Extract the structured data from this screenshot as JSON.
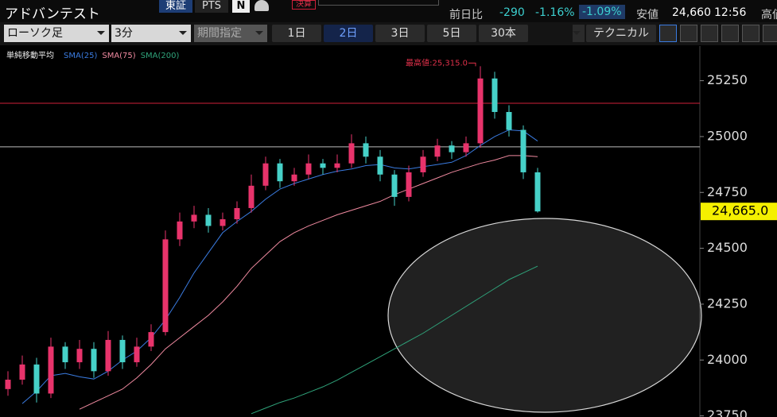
{
  "header": {
    "title": "アドバンテスト",
    "market_buttons": [
      "東証",
      "PTS"
    ],
    "earnings": "決算",
    "change_label": "前日比",
    "change": "-290",
    "change_pct": "-1.16%",
    "index_change_pct": "-1.09%",
    "low_label": "安値",
    "low": "24,660",
    "time": "12:56",
    "high_label": "高値"
  },
  "toolbar": {
    "chart_type": "ローソク足",
    "interval": "3分",
    "period": "期間指定",
    "ranges": [
      "1日",
      "2日",
      "3日",
      "5日",
      "30本"
    ],
    "selected_range": 1,
    "technical": "テクニカル"
  },
  "chart_data": {
    "type": "candlestick",
    "legend_title": "単純移動平均",
    "ylim": [
      23745,
      25405
    ],
    "yticks": [
      23750,
      24000,
      24250,
      24500,
      24750,
      25000,
      25250
    ],
    "up_color": "#e8336b",
    "down_color": "#46d1c8",
    "candles": {
      "open": [
        23870,
        23912,
        23980,
        23850,
        24060,
        23990,
        24050,
        23950,
        24090,
        23990,
        24060,
        24125,
        24540,
        24620,
        24650,
        24600,
        24630,
        24680,
        24780,
        24880,
        24800,
        24830,
        24880,
        24860,
        24880,
        24970,
        24910,
        24830,
        24730,
        24840,
        24910,
        24960,
        24930,
        24970,
        25260,
        25110,
        25030,
        24840
      ],
      "high": [
        23950,
        24020,
        24010,
        24100,
        24080,
        24090,
        24080,
        24130,
        24110,
        24100,
        24160,
        24580,
        24660,
        24690,
        24680,
        24660,
        24710,
        24830,
        24910,
        24900,
        24860,
        24920,
        24900,
        24920,
        25010,
        25000,
        24940,
        24850,
        24870,
        24940,
        24990,
        24980,
        25000,
        25315,
        25290,
        25140,
        25050,
        24860
      ],
      "low": [
        23840,
        23890,
        23810,
        23830,
        23960,
        23960,
        23920,
        23930,
        23960,
        23970,
        24040,
        24110,
        24510,
        24590,
        24570,
        24580,
        24610,
        24660,
        24760,
        24770,
        24780,
        24810,
        24830,
        24840,
        24860,
        24880,
        24800,
        24690,
        24710,
        24820,
        24890,
        24900,
        24910,
        24950,
        25080,
        25000,
        24810,
        24660
      ],
      "close": [
        23912,
        23980,
        23850,
        24060,
        23990,
        24050,
        23950,
        24090,
        23990,
        24060,
        24125,
        24540,
        24620,
        24650,
        24600,
        24630,
        24680,
        24780,
        24880,
        24800,
        24830,
        24880,
        24860,
        24880,
        24970,
        24910,
        24830,
        24730,
        24840,
        24910,
        24960,
        24930,
        24970,
        25260,
        25110,
        25030,
        24840,
        24665
      ]
    },
    "overlays": [
      {
        "name": "SMA(25)",
        "color": "#3a7be0",
        "values": [
          null,
          23805,
          23860,
          23930,
          23940,
          23925,
          23915,
          23950,
          24000,
          24040,
          24100,
          24180,
          24280,
          24390,
          24480,
          24570,
          24620,
          24665,
          24720,
          24765,
          24790,
          24810,
          24830,
          24845,
          24855,
          24870,
          24875,
          24860,
          24855,
          24865,
          24875,
          24885,
          24915,
          24960,
          25000,
          25030,
          25025,
          24980
        ]
      },
      {
        "name": "SMA(75)",
        "color": "#f08aa0",
        "values": [
          null,
          null,
          null,
          null,
          null,
          23780,
          23810,
          23840,
          23870,
          23920,
          23980,
          24050,
          24100,
          24150,
          24200,
          24260,
          24330,
          24410,
          24470,
          24530,
          24570,
          24600,
          24625,
          24650,
          24670,
          24690,
          24710,
          24740,
          24765,
          24790,
          24815,
          24840,
          24860,
          24880,
          24895,
          24915,
          24915,
          24910
        ]
      },
      {
        "name": "SMA(200)",
        "color": "#2fa37a",
        "values": [
          null,
          null,
          null,
          null,
          null,
          null,
          null,
          null,
          null,
          null,
          null,
          null,
          null,
          null,
          null,
          null,
          null,
          23760,
          23785,
          23810,
          23830,
          23855,
          23880,
          23910,
          23945,
          23980,
          24015,
          24050,
          24085,
          24120,
          24160,
          24200,
          24240,
          24280,
          24320,
          24360,
          24390,
          24420
        ]
      }
    ],
    "reference_lines": [
      {
        "value": 25149,
        "color": "#d0203a"
      },
      {
        "value": 24954,
        "color": "#bdbdbd"
      }
    ],
    "last_price": {
      "value": 24665,
      "label": "24,665.0"
    },
    "annotation": {
      "text": "最高値:25,315.0",
      "value": 25315,
      "color": "#e0304a"
    }
  }
}
